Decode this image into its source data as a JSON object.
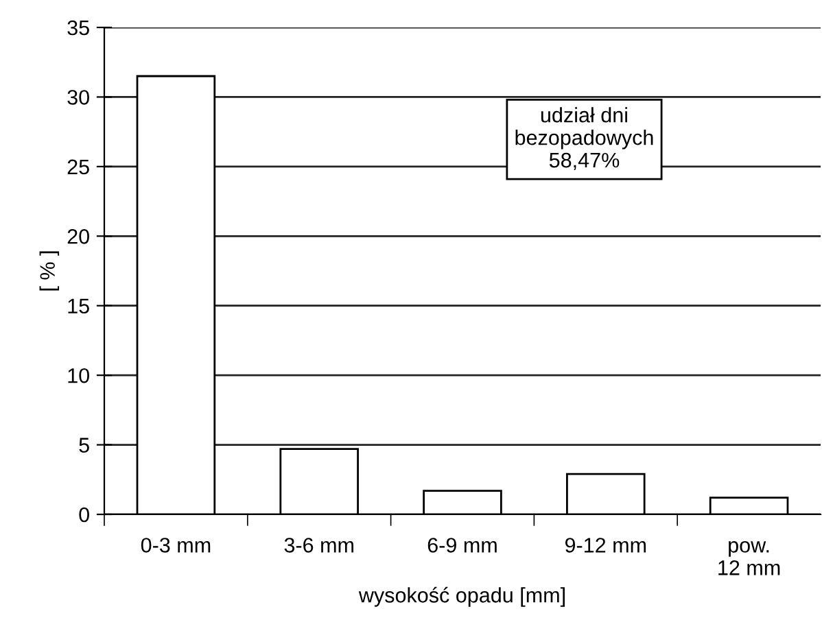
{
  "chart_data": {
    "type": "bar",
    "categories": [
      "0-3 mm",
      "3-6 mm",
      "6-9 mm",
      "9-12 mm",
      "pow.\n12 mm"
    ],
    "values": [
      31.5,
      4.7,
      1.7,
      2.9,
      1.2
    ],
    "color": "#ffffff",
    "xlabel": "wysokość opadu [mm]",
    "ylabel": "[ % ]",
    "ylim": [
      0,
      35
    ],
    "yticks": [
      0,
      5,
      10,
      15,
      20,
      25,
      30,
      35
    ],
    "grid": "y",
    "annotations": [
      "udział dni\nbezopadowych\n58,47%"
    ]
  }
}
